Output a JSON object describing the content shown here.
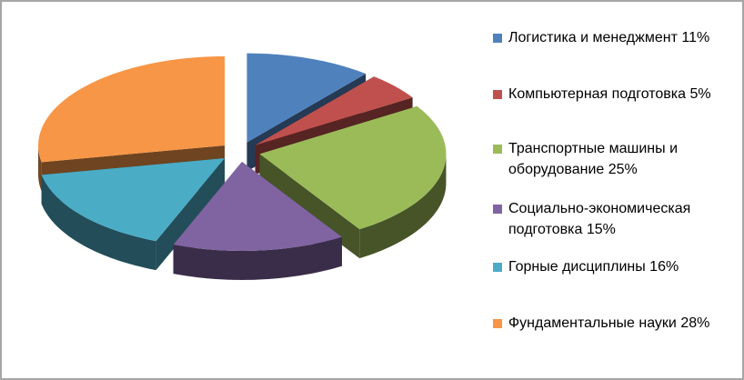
{
  "chart_data": {
    "type": "pie",
    "categories": [
      "Логистика и менеджмент",
      "Компьютерная подготовка",
      "Транспортные машины и оборудование",
      "Социально-экономическая подготовка",
      "Горные дисциплины",
      "Фундаментальные науки"
    ],
    "values": [
      11,
      5,
      25,
      15,
      16,
      28
    ],
    "value_labels": [
      "11%",
      "5%",
      "25%",
      "15%",
      "16%",
      "28%"
    ],
    "colors": [
      "#4f81bd",
      "#c0504d",
      "#9bbb59",
      "#8064a2",
      "#4bacc6",
      "#f79646"
    ],
    "legend": "right"
  }
}
